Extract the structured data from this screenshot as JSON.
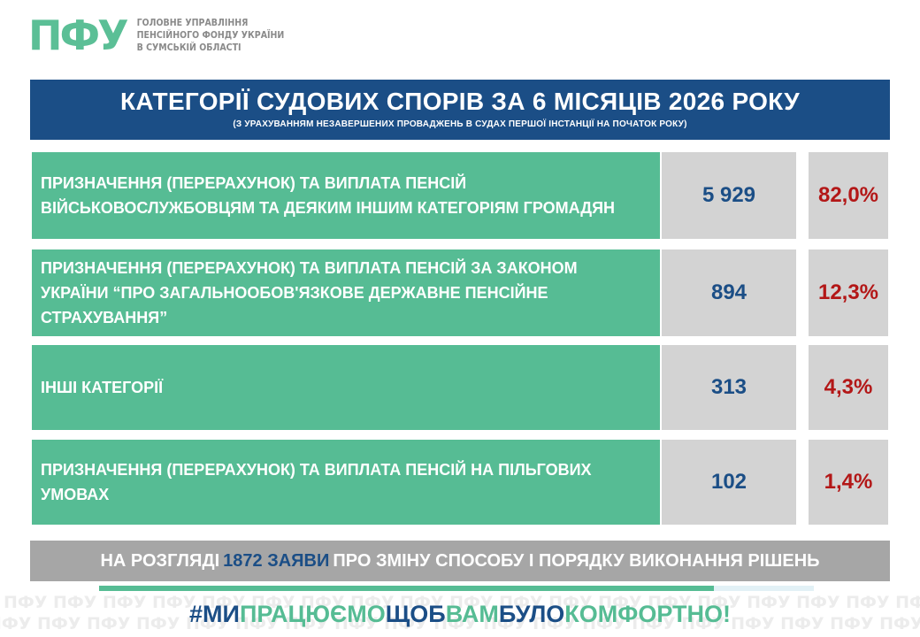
{
  "logo": {
    "mark": "ПФУ",
    "lines": [
      "ГОЛОВНЕ УПРАВЛІННЯ",
      "ПЕНСІЙНОГО ФОНДУ УКРАЇНИ",
      "В СУМСЬКІЙ ОБЛАСТІ"
    ]
  },
  "header": {
    "title": "КАТЕГОРІЇ СУДОВИХ СПОРІВ ЗА 6 МІСЯЦІВ 2026 РОКУ",
    "subtitle": "(З УРАХУВАННЯМ НЕЗАВЕРШЕНИХ ПРОВАДЖЕНЬ В СУДАХ ПЕРШОЇ ІНСТАНЦІЇ НА ПОЧАТОК РОКУ)"
  },
  "rows": [
    {
      "lines": [
        "ПРИЗНАЧЕННЯ (ПЕРЕРАХУНОК) ТА ВИПЛАТА ПЕНСІЙ",
        "ВІЙСЬКОВОСЛУЖБОВЦЯМ ТА ДЕЯКИМ ІНШИМ КАТЕГОРІЯМ ГРОМАДЯН"
      ],
      "count": "5 929",
      "percent": "82,0%",
      "share": 0.82
    },
    {
      "lines": [
        "ПРИЗНАЧЕННЯ (ПЕРЕРАХУНОК) ТА ВИПЛАТА ПЕНСІЙ ЗА ЗАКОНОМ",
        "УКРАЇНИ “ПРО ЗАГАЛЬНООБОВ'ЯЗКОВЕ  ДЕРЖАВНЕ ПЕНСІЙНЕ",
        "СТРАХУВАННЯ”"
      ],
      "count": "894",
      "percent": "12,3%",
      "share": 0.123
    },
    {
      "lines": [
        "ІНШІ КАТЕГОРІЇ"
      ],
      "count": "313",
      "percent": "4,3%",
      "share": 0.043
    },
    {
      "lines": [
        "ПРИЗНАЧЕННЯ (ПЕРЕРАХУНОК) ТА ВИПЛАТА ПЕНСІЙ НА ПІЛЬГОВИХ",
        "УМОВАХ"
      ],
      "count": "102",
      "percent": "1,4%",
      "share": 0.014
    }
  ],
  "pending": {
    "prefix": "НА РОЗГЛЯДІ",
    "count": "1872",
    "noun": "ЗАЯВИ",
    "suffix": "ПРО ЗМІНУ СПОСОБУ І ПОРЯДКУ ВИКОНАННЯ РІШЕНЬ"
  },
  "progress": {
    "fraction": 0.86
  },
  "hashtag": {
    "parts": [
      {
        "text": "#МИ",
        "color": "navy"
      },
      {
        "text": "ПРАЦЮЄМО",
        "color": "green"
      },
      {
        "text": "ЩОБ",
        "color": "navy"
      },
      {
        "text": "ВАМ",
        "color": "green"
      },
      {
        "text": "БУЛО",
        "color": "navy"
      },
      {
        "text": "КОМФОРТНО!",
        "color": "green"
      }
    ]
  },
  "watermark": {
    "word": "ПФУ"
  },
  "colors": {
    "navy": "#1b4e86",
    "green": "#56bc94",
    "grey": "#d3d3d3",
    "red": "#b31717",
    "bar_grey": "#a6a6a6"
  }
}
